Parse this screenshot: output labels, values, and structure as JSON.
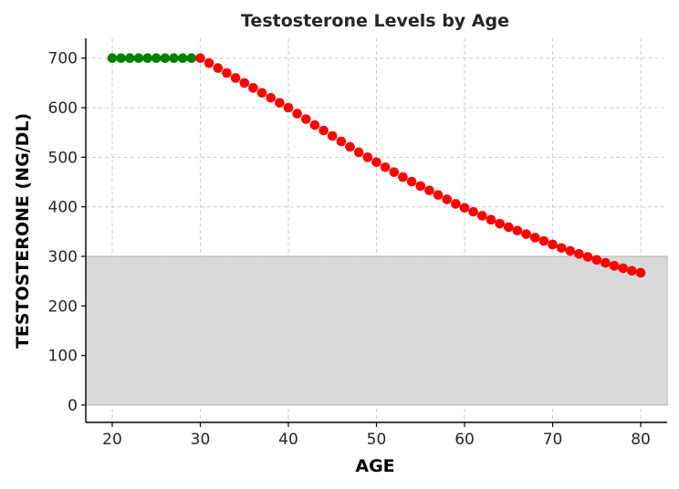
{
  "chart_data": {
    "type": "scatter",
    "title": "Testosterone Levels by Age",
    "xlabel": "AGE",
    "ylabel": "TESTOSTERONE (NG/DL)",
    "xlim": [
      17,
      83
    ],
    "ylim": [
      -35,
      740
    ],
    "x_ticks": [
      20,
      30,
      40,
      50,
      60,
      70,
      80
    ],
    "y_ticks": [
      0,
      100,
      200,
      300,
      400,
      500,
      600,
      700
    ],
    "grid": true,
    "shaded_region": {
      "y_from": 0,
      "y_to": 300,
      "color": "#d9d9d9"
    },
    "series": [
      {
        "color": "#008000",
        "x": [
          20,
          21,
          22,
          23,
          24,
          25,
          26,
          27,
          28,
          29
        ],
        "y": [
          700,
          700,
          700,
          700,
          700,
          700,
          700,
          700,
          700,
          700
        ]
      },
      {
        "color": "#ff0000",
        "x": [
          30,
          31,
          32,
          33,
          34,
          35,
          36,
          37,
          38,
          39,
          40,
          41,
          42,
          43,
          44,
          45,
          46,
          47,
          48,
          49,
          50,
          51,
          52,
          53,
          54,
          55,
          56,
          57,
          58,
          59,
          60,
          61,
          62,
          63,
          64,
          65,
          66,
          67,
          68,
          69,
          70,
          71,
          72,
          73,
          74,
          75,
          76,
          77,
          78,
          79,
          80
        ],
        "y": [
          700,
          690,
          680,
          670,
          660,
          650,
          640,
          630,
          620,
          610,
          600,
          588,
          577,
          565,
          554,
          543,
          532,
          521,
          510,
          500,
          490,
          480,
          470,
          460,
          451,
          442,
          433,
          424,
          415,
          406,
          398,
          390,
          382,
          374,
          366,
          359,
          352,
          345,
          338,
          331,
          324,
          317,
          311,
          305,
          299,
          293,
          287,
          281,
          276,
          271,
          267
        ]
      }
    ]
  }
}
